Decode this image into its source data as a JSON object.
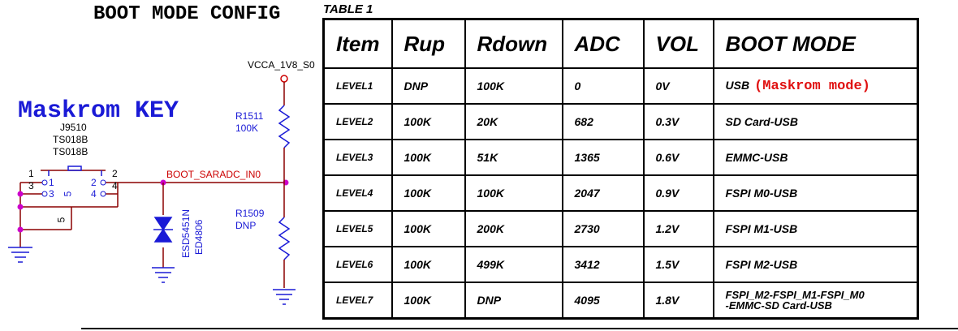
{
  "title": "BOOT MODE CONFIG",
  "table_label": "TABLE 1",
  "schematic": {
    "maskrom_label": "Maskrom KEY",
    "switch_ref": "J9510",
    "switch_part1": "TS018B",
    "switch_part2": "TS018B",
    "pin1": "1",
    "pin2": "2",
    "pin3": "3",
    "pin4": "4",
    "pin5": "5",
    "pin1b": "1",
    "pin2b": "2",
    "pin3b": "3",
    "pin4b": "4",
    "pin5b": "5",
    "net_name": "BOOT_SARADC_IN0",
    "vcc_label": "VCCA_1V8_S0",
    "r_top_ref": "R1511",
    "r_top_val": "100K",
    "r_bot_ref": "R1509",
    "r_bot_val": "DNP",
    "diode_part": "ESD5451N",
    "diode_pkg": "ED4806"
  },
  "table": {
    "headers": [
      "Item",
      "Rup",
      "Rdown",
      "ADC",
      "VOL",
      "BOOT MODE"
    ],
    "rows": [
      {
        "item": "LEVEL1",
        "rup": "DNP",
        "rdown": "100K",
        "adc": "0",
        "vol": "0V",
        "mode": "USB",
        "note": "(Maskrom mode)"
      },
      {
        "item": "LEVEL2",
        "rup": "100K",
        "rdown": "20K",
        "adc": "682",
        "vol": "0.3V",
        "mode": "SD Card-USB",
        "note": ""
      },
      {
        "item": "LEVEL3",
        "rup": "100K",
        "rdown": "51K",
        "adc": "1365",
        "vol": "0.6V",
        "mode": "EMMC-USB",
        "note": ""
      },
      {
        "item": "LEVEL4",
        "rup": "100K",
        "rdown": "100K",
        "adc": "2047",
        "vol": "0.9V",
        "mode": "FSPI M0-USB",
        "note": ""
      },
      {
        "item": "LEVEL5",
        "rup": "100K",
        "rdown": "200K",
        "adc": "2730",
        "vol": "1.2V",
        "mode": "FSPI M1-USB",
        "note": ""
      },
      {
        "item": "LEVEL6",
        "rup": "100K",
        "rdown": "499K",
        "adc": "3412",
        "vol": "1.5V",
        "mode": "FSPI M2-USB",
        "note": ""
      },
      {
        "item": "LEVEL7",
        "rup": "100K",
        "rdown": "DNP",
        "adc": "4095",
        "vol": "1.8V",
        "mode": "FSPI_M2-FSPI_M1-FSPI_M0",
        "mode2": "-EMMC-SD Card-USB",
        "note": ""
      }
    ]
  }
}
